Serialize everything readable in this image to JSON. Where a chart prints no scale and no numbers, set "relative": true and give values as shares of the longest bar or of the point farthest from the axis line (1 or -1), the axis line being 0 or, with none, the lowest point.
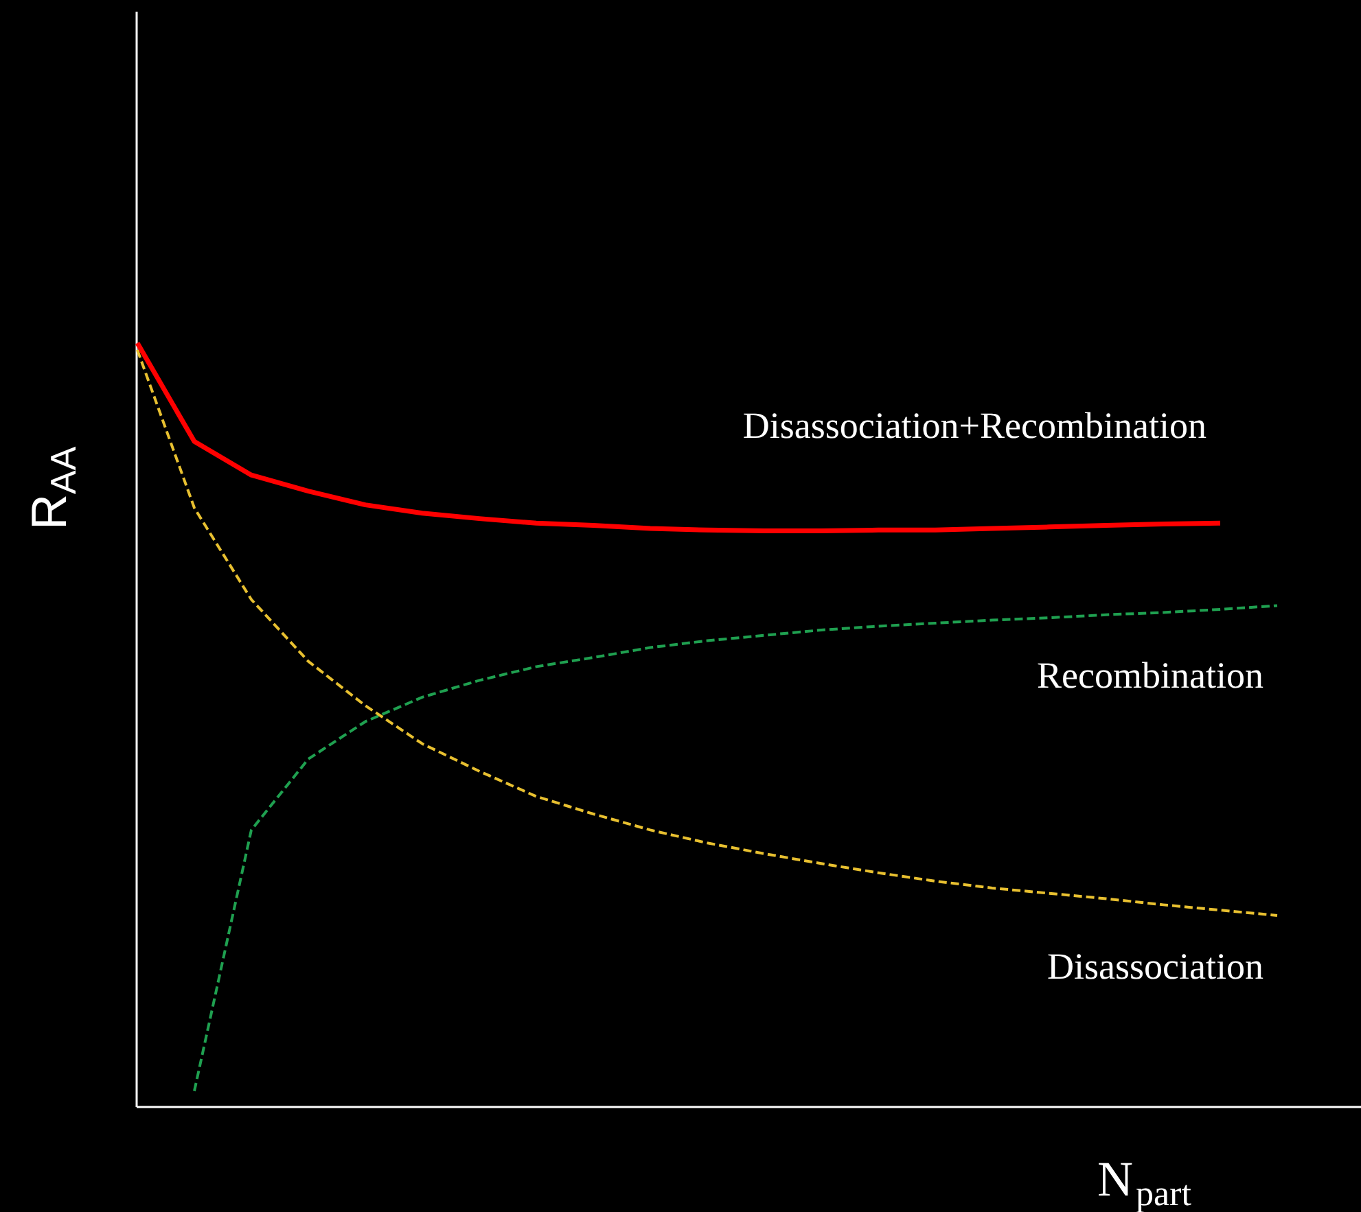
{
  "chart_data": {
    "type": "line",
    "relative": true,
    "xlabel": "N$_{part}$",
    "ylabel": "R$_{AA}$",
    "grid": false,
    "categories": [
      null,
      null,
      null,
      null,
      null,
      null,
      null,
      null,
      null,
      null,
      null,
      null,
      null,
      null,
      null,
      null,
      null,
      null,
      null,
      null,
      null
    ],
    "series": [
      {
        "name": "Disassociation+Recombination",
        "color": "#ff0000",
        "line_style": "solid",
        "values": [
          1.0,
          0.871,
          0.827,
          0.806,
          0.788,
          0.777,
          0.77,
          0.764,
          0.761,
          0.757,
          0.755,
          0.754,
          0.754,
          0.755,
          0.755,
          0.757,
          0.759,
          0.761,
          0.763,
          0.764,
          null
        ]
      },
      {
        "name": "Recombination",
        "color": "#1fa050",
        "line_style": "dashed",
        "values": [
          null,
          0.02,
          0.362,
          0.455,
          0.504,
          0.536,
          0.558,
          0.576,
          0.588,
          0.601,
          0.61,
          0.617,
          0.624,
          0.629,
          0.633,
          0.637,
          0.64,
          0.644,
          0.647,
          0.651,
          0.656
        ]
      },
      {
        "name": "Disassociation",
        "color": "#e8c030",
        "line_style": "dashed",
        "values": [
          0.991,
          0.784,
          0.664,
          0.583,
          0.525,
          0.475,
          0.439,
          0.406,
          0.383,
          0.362,
          0.345,
          0.331,
          0.318,
          0.306,
          0.295,
          0.286,
          0.279,
          0.272,
          0.264,
          0.257,
          0.25
        ]
      }
    ]
  }
}
